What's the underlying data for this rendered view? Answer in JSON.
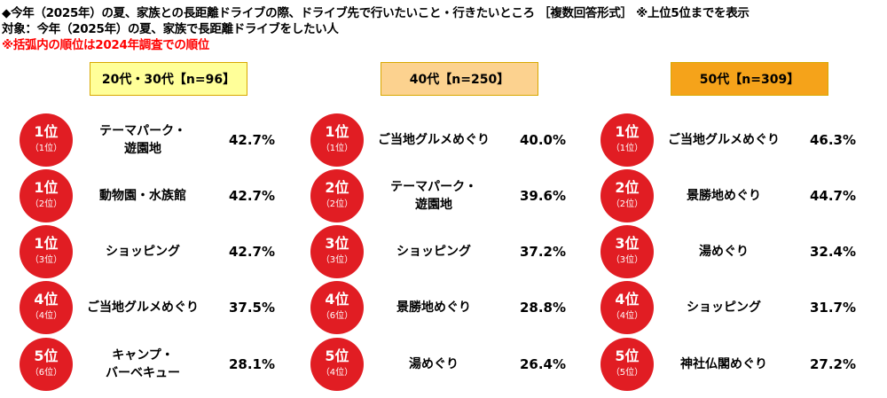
{
  "header": {
    "line1": "◆今年（2025年）の夏、家族との長距離ドライブの際、ドライブ先で行いたいこと・行きたいところ ［複数回答形式］ ※上位5位までを表示",
    "line2": "対象：今年（2025年）の夏、家族で長距離ドライブをしたい人",
    "line3": "※括弧内の順位は2024年調査での順位"
  },
  "chart_data": {
    "type": "table",
    "panels": [
      {
        "title": "20代・30代【n=96】",
        "header_color": "#ffff99",
        "items": [
          {
            "rank": "1位",
            "prev_rank": "（1位）",
            "label": "テーマパーク・\n遊園地",
            "value": 42.7,
            "display": "42.7%"
          },
          {
            "rank": "1位",
            "prev_rank": "（2位）",
            "label": "動物園・水族館",
            "value": 42.7,
            "display": "42.7%"
          },
          {
            "rank": "1位",
            "prev_rank": "（3位）",
            "label": "ショッピング",
            "value": 42.7,
            "display": "42.7%"
          },
          {
            "rank": "4位",
            "prev_rank": "（4位）",
            "label": "ご当地グルメめぐり",
            "value": 37.5,
            "display": "37.5%"
          },
          {
            "rank": "5位",
            "prev_rank": "（6位）",
            "label": "キャンプ・\nバーベキュー",
            "value": 28.1,
            "display": "28.1%"
          }
        ]
      },
      {
        "title": "40代【n=250】",
        "header_color": "#fcd28f",
        "items": [
          {
            "rank": "1位",
            "prev_rank": "（1位）",
            "label": "ご当地グルメめぐり",
            "value": 40.0,
            "display": "40.0%"
          },
          {
            "rank": "2位",
            "prev_rank": "（2位）",
            "label": "テーマパーク・\n遊園地",
            "value": 39.6,
            "display": "39.6%"
          },
          {
            "rank": "3位",
            "prev_rank": "（3位）",
            "label": "ショッピング",
            "value": 37.2,
            "display": "37.2%"
          },
          {
            "rank": "4位",
            "prev_rank": "（6位）",
            "label": "景勝地めぐり",
            "value": 28.8,
            "display": "28.8%"
          },
          {
            "rank": "5位",
            "prev_rank": "（4位）",
            "label": "湯めぐり",
            "value": 26.4,
            "display": "26.4%"
          }
        ]
      },
      {
        "title": "50代【n=309】",
        "header_color": "#f5a31a",
        "items": [
          {
            "rank": "1位",
            "prev_rank": "（1位）",
            "label": "ご当地グルメめぐり",
            "value": 46.3,
            "display": "46.3%"
          },
          {
            "rank": "2位",
            "prev_rank": "（2位）",
            "label": "景勝地めぐり",
            "value": 44.7,
            "display": "44.7%"
          },
          {
            "rank": "3位",
            "prev_rank": "（3位）",
            "label": "湯めぐり",
            "value": 32.4,
            "display": "32.4%"
          },
          {
            "rank": "4位",
            "prev_rank": "（4位）",
            "label": "ショッピング",
            "value": 31.7,
            "display": "31.7%"
          },
          {
            "rank": "5位",
            "prev_rank": "（5位）",
            "label": "神社仏閣めぐり",
            "value": 27.2,
            "display": "27.2%"
          }
        ]
      }
    ]
  },
  "colors": {
    "circle": "#e11d23",
    "note": "#ff0000"
  }
}
